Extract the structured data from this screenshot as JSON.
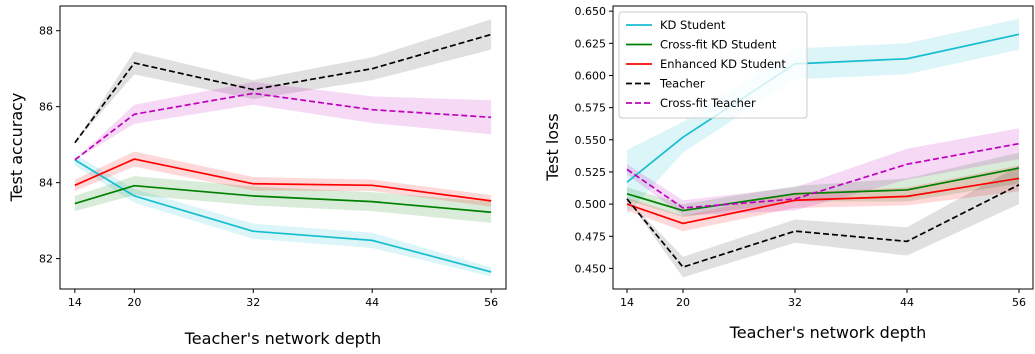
{
  "chart_data": [
    {
      "type": "line",
      "xlabel": "Teacher's network depth",
      "ylabel": "Test accuracy",
      "x": [
        14,
        20,
        32,
        44,
        56
      ],
      "xlim": [
        12.5,
        57.5
      ],
      "ylim": [
        81.2,
        88.65
      ],
      "xticks": [
        "14",
        "20",
        "32",
        "44",
        "56"
      ],
      "yticks": [
        82,
        84,
        86,
        88
      ],
      "ytick_labels": [
        "82",
        "84",
        "86",
        "88"
      ],
      "legend": "none",
      "grid": false,
      "series": [
        {
          "key": "kd",
          "color": "#17becf",
          "dashed": false,
          "values": [
            84.6,
            83.65,
            82.72,
            82.48,
            81.65
          ],
          "band": [
            0.15,
            0.18,
            0.2,
            0.2,
            0.12
          ]
        },
        {
          "key": "crossfit",
          "color": "#008000",
          "dashed": false,
          "values": [
            83.45,
            83.92,
            83.65,
            83.5,
            83.22
          ],
          "band": [
            0.2,
            0.25,
            0.25,
            0.25,
            0.28
          ]
        },
        {
          "key": "enhanced",
          "color": "#ff0000",
          "dashed": false,
          "values": [
            83.93,
            84.62,
            83.97,
            83.93,
            83.52
          ],
          "band": [
            0.15,
            0.2,
            0.18,
            0.15,
            0.15
          ]
        },
        {
          "key": "teacher",
          "color": "#000000",
          "dashed": true,
          "values": [
            85.05,
            87.15,
            86.45,
            87.0,
            87.9
          ],
          "band": [
            0.0,
            0.3,
            0.25,
            0.3,
            0.4
          ]
        },
        {
          "key": "crossfit_teacher",
          "color": "#bf00bf",
          "dashed": true,
          "values": [
            84.6,
            85.8,
            86.35,
            85.92,
            85.72
          ],
          "band": [
            0.0,
            0.25,
            0.3,
            0.35,
            0.45
          ]
        }
      ]
    },
    {
      "type": "line",
      "xlabel": "Teacher's network depth",
      "ylabel": "Test loss",
      "x": [
        14,
        20,
        32,
        44,
        56
      ],
      "xlim": [
        12.5,
        57.5
      ],
      "ylim": [
        0.434,
        0.654
      ],
      "xticks": [
        "14",
        "20",
        "32",
        "44",
        "56"
      ],
      "yticks": [
        0.45,
        0.475,
        0.5,
        0.525,
        0.55,
        0.575,
        0.6,
        0.625,
        0.65
      ],
      "ytick_labels": [
        "0.450",
        "0.475",
        "0.500",
        "0.525",
        "0.550",
        "0.575",
        "0.600",
        "0.625",
        "0.650"
      ],
      "legend": "top-left",
      "grid": false,
      "series": [
        {
          "key": "kd",
          "name": "KD Student",
          "color": "#17becf",
          "dashed": false,
          "values": [
            0.517,
            0.552,
            0.609,
            0.613,
            0.632
          ],
          "band": [
            0.025,
            0.012,
            0.012,
            0.012,
            0.012
          ]
        },
        {
          "key": "crossfit",
          "name": "Cross-fit KD Student",
          "color": "#008000",
          "dashed": false,
          "values": [
            0.508,
            0.495,
            0.508,
            0.511,
            0.528
          ],
          "band": [
            0.005,
            0.005,
            0.006,
            0.009,
            0.012
          ]
        },
        {
          "key": "enhanced",
          "name": "Enhanced KD Student",
          "color": "#ff0000",
          "dashed": false,
          "values": [
            0.5,
            0.485,
            0.503,
            0.506,
            0.52
          ],
          "band": [
            0.005,
            0.006,
            0.006,
            0.007,
            0.01
          ]
        },
        {
          "key": "teacher",
          "name": "Teacher",
          "color": "#000000",
          "dashed": true,
          "values": [
            0.504,
            0.451,
            0.479,
            0.471,
            0.515
          ],
          "band": [
            0.0,
            0.008,
            0.009,
            0.011,
            0.015
          ]
        },
        {
          "key": "crossfit_teacher",
          "name": "Cross-fit Teacher",
          "color": "#bf00bf",
          "dashed": true,
          "values": [
            0.527,
            0.497,
            0.504,
            0.531,
            0.547
          ],
          "band": [
            0.004,
            0.006,
            0.009,
            0.012,
            0.012
          ]
        }
      ]
    }
  ]
}
